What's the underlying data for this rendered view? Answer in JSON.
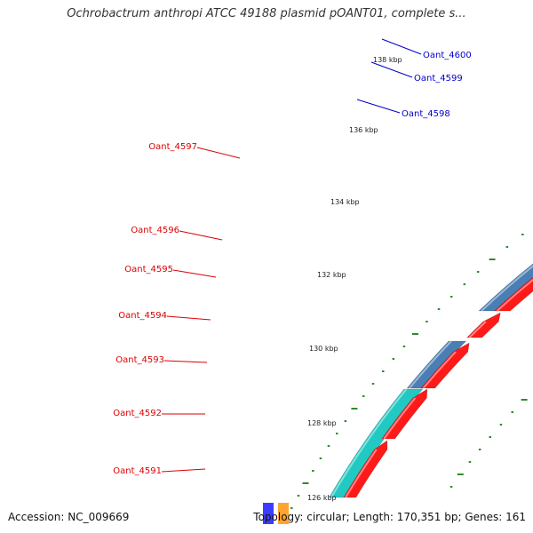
{
  "title": "Ochrobactrum anthropi ATCC 49188 plasmid pOANT01, complete s...",
  "footer": {
    "accession": "Accession: NC_009669",
    "info": "Topology: circular; Length: 170,351 bp; Genes: 161"
  },
  "colors": {
    "background": "#ffffff",
    "backbone": "#8c8c8c",
    "tick": "#2e8b2e",
    "red_gene": "#ff1a1a",
    "cyan_gene": "#1de0e8",
    "steel_gene": "#4a7fb5",
    "teal_gene": "#22c9c2",
    "blue_gene": "#1a1aff",
    "pink_gene": "#ff2aa8",
    "orange_gene": "#ff9a1a",
    "red_label": "#dd0000",
    "blue_label": "#0000cc"
  },
  "scale_labels": [
    "138 kbp",
    "136 kbp",
    "134 kbp",
    "132 kbp",
    "130 kbp",
    "128 kbp",
    "126 kbp"
  ],
  "red_gene_labels": [
    "Oant_4597",
    "Oant_4596",
    "Oant_4595",
    "Oant_4594",
    "Oant_4593",
    "Oant_4592",
    "Oant_4591"
  ],
  "blue_gene_labels": [
    "Oant_4600",
    "Oant_4599",
    "Oant_4598"
  ]
}
